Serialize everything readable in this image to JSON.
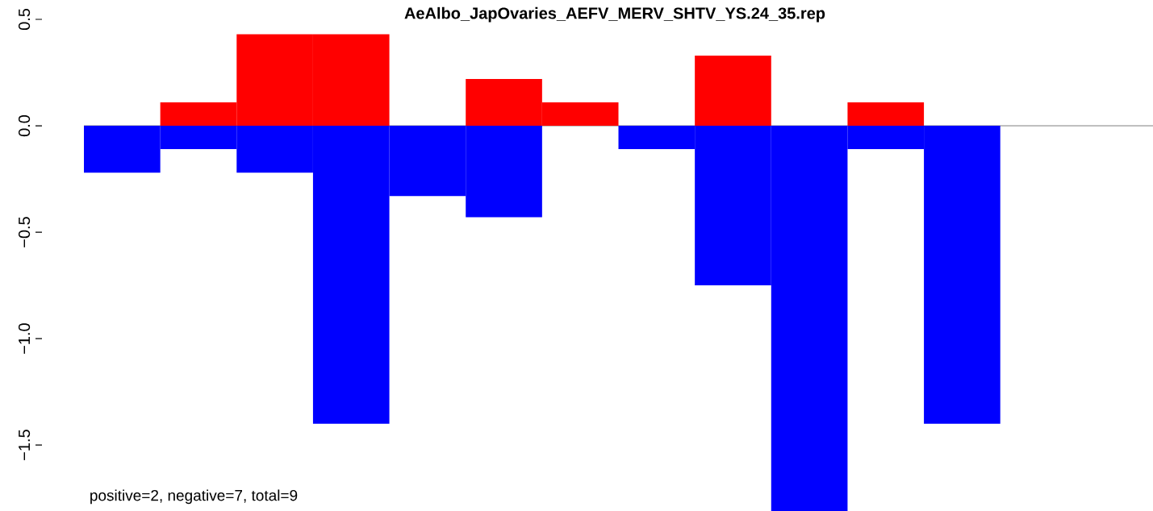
{
  "chart_data": {
    "type": "bar",
    "title": "AeAlbo_JapOvaries_AEFV_MERV_SHTV_YS.24_35.rep",
    "categories": [
      null,
      null,
      null,
      null,
      null,
      null,
      null,
      null,
      null,
      null,
      null,
      null,
      null,
      null
    ],
    "series": [
      {
        "color": "#ff0000",
        "values": [
          0,
          0.11,
          0.43,
          0.43,
          0,
          0.22,
          0.11,
          0,
          0.33,
          0,
          0.11,
          0,
          null,
          null
        ]
      },
      {
        "color": "#0000ff",
        "values": [
          -0.22,
          -0.11,
          -0.22,
          -1.4,
          -0.33,
          -0.43,
          0,
          -0.11,
          -0.75,
          -1.81,
          -0.11,
          -1.4,
          null,
          null
        ]
      }
    ],
    "ylim": [
      -1.81,
      0.5
    ],
    "yticks": [
      {
        "value": -1.5,
        "label": "−1.5"
      },
      {
        "value": -1.0,
        "label": "−1.0"
      },
      {
        "value": -0.5,
        "label": "−0.5"
      },
      {
        "value": 0.0,
        "label": "0.0"
      },
      {
        "value": 0.5,
        "label": "0.5"
      }
    ],
    "ref_lines": [
      {
        "axis": "y",
        "value": 0,
        "color": "#808080"
      }
    ],
    "annotations": [
      "positive=2, negative=7, total=9"
    ]
  }
}
